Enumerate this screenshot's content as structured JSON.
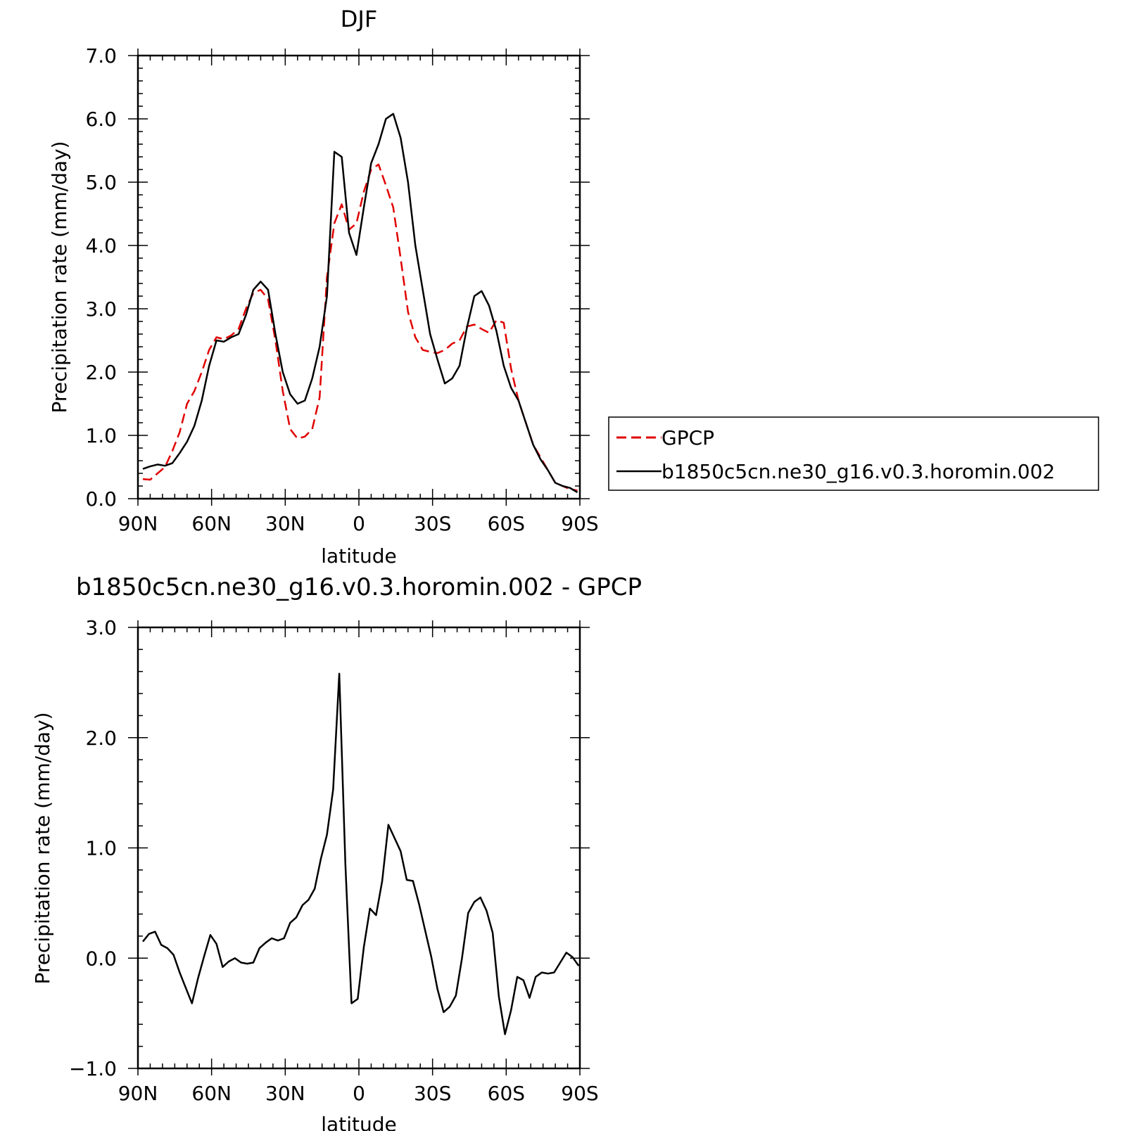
{
  "chart_data": [
    {
      "type": "line",
      "title": "DJF",
      "xlabel": "latitude",
      "ylabel": "Precipitation rate (mm/day)",
      "xlim": [
        90,
        -90
      ],
      "ylim": [
        0,
        7
      ],
      "xticks": [
        90,
        60,
        30,
        0,
        -30,
        -60,
        -90
      ],
      "xtick_labels": [
        "90N",
        "60N",
        "30N",
        "0",
        "30S",
        "60S",
        "90S"
      ],
      "yticks": [
        0,
        1,
        2,
        3,
        4,
        5,
        6,
        7
      ],
      "ytick_labels": [
        "0.0",
        "1.0",
        "2.0",
        "3.0",
        "4.0",
        "5.0",
        "6.0",
        "7.0"
      ],
      "legend": {
        "position": "right",
        "entries": [
          "GPCP",
          "b1850c5cn.ne30_g16.v0.3.horomin.002"
        ]
      },
      "series": [
        {
          "name": "GPCP",
          "color": "#e00000",
          "dash": true,
          "x": [
            88,
            85,
            82,
            79,
            76,
            73,
            70,
            67,
            64,
            61,
            58,
            55,
            52,
            49,
            46,
            43,
            40,
            37,
            34,
            31,
            28,
            25,
            22,
            19,
            16,
            13,
            10,
            7,
            4,
            1,
            -2,
            -5,
            -8,
            -11,
            -14,
            -17,
            -20,
            -23,
            -26,
            -29,
            -32,
            -35,
            -38,
            -41,
            -44,
            -47,
            -50,
            -53,
            -56,
            -59,
            -62,
            -65,
            -68,
            -71,
            -74,
            -77,
            -80,
            -83,
            -86,
            -89
          ],
          "y": [
            0.31,
            0.3,
            0.4,
            0.5,
            0.75,
            1.05,
            1.5,
            1.7,
            2.0,
            2.35,
            2.55,
            2.52,
            2.58,
            2.68,
            3.0,
            3.25,
            3.3,
            3.15,
            2.5,
            1.7,
            1.1,
            0.95,
            0.98,
            1.1,
            1.6,
            3.5,
            4.35,
            4.65,
            4.25,
            4.35,
            4.85,
            5.2,
            5.28,
            4.95,
            4.6,
            3.8,
            2.95,
            2.55,
            2.35,
            2.32,
            2.3,
            2.35,
            2.45,
            2.5,
            2.72,
            2.75,
            2.68,
            2.62,
            2.82,
            2.78,
            2.05,
            1.55,
            1.2,
            0.85,
            0.65,
            0.45,
            0.25,
            0.2,
            0.15,
            0.13
          ]
        },
        {
          "name": "b1850c5cn.ne30_g16.v0.3.horomin.002",
          "color": "#000000",
          "dash": false,
          "x": [
            88,
            85,
            82,
            79,
            76,
            73,
            70,
            67,
            64,
            61,
            58,
            55,
            52,
            49,
            46,
            43,
            40,
            37,
            34,
            31,
            28,
            25,
            22,
            19,
            16,
            13,
            10,
            7,
            4,
            1,
            -2,
            -5,
            -8,
            -11,
            -14,
            -17,
            -20,
            -23,
            -26,
            -29,
            -32,
            -35,
            -38,
            -41,
            -44,
            -47,
            -50,
            -53,
            -56,
            -59,
            -62,
            -65,
            -68,
            -71,
            -74,
            -77,
            -80,
            -83,
            -86,
            -89
          ],
          "y": [
            0.47,
            0.51,
            0.54,
            0.52,
            0.56,
            0.72,
            0.9,
            1.15,
            1.55,
            2.1,
            2.5,
            2.48,
            2.55,
            2.6,
            2.9,
            3.3,
            3.43,
            3.3,
            2.6,
            2.0,
            1.65,
            1.5,
            1.55,
            1.9,
            2.4,
            3.2,
            5.48,
            5.4,
            4.2,
            3.85,
            4.6,
            5.3,
            5.6,
            6.0,
            6.08,
            5.7,
            5.0,
            4.0,
            3.3,
            2.6,
            2.2,
            1.82,
            1.9,
            2.1,
            2.7,
            3.2,
            3.28,
            3.05,
            2.65,
            2.1,
            1.75,
            1.55,
            1.2,
            0.85,
            0.62,
            0.45,
            0.25,
            0.2,
            0.17,
            0.1
          ]
        }
      ]
    },
    {
      "type": "line",
      "title": "b1850c5cn.ne30_g16.v0.3.horomin.002 - GPCP",
      "xlabel": "latitude",
      "ylabel": "Precipitation rate (mm/day)",
      "xlim": [
        90,
        -90
      ],
      "ylim": [
        -1,
        3
      ],
      "xticks": [
        90,
        60,
        30,
        0,
        -30,
        -60,
        -90
      ],
      "xtick_labels": [
        "90N",
        "60N",
        "30N",
        "0",
        "30S",
        "60S",
        "90S"
      ],
      "yticks": [
        -1,
        0,
        1,
        2,
        3
      ],
      "ytick_labels": [
        "−1.0",
        "0.0",
        "1.0",
        "2.0",
        "3.0"
      ],
      "series": [
        {
          "color": "#000000",
          "dash": false,
          "x": [
            88,
            85.5,
            83,
            80.5,
            78,
            75.5,
            73,
            70.5,
            68,
            65.5,
            63,
            60.5,
            58,
            55.5,
            53,
            50.5,
            48,
            45.5,
            43,
            40.5,
            38,
            35.5,
            33,
            30.5,
            28,
            25.5,
            23,
            20.5,
            18,
            15.5,
            13,
            10.5,
            8,
            5.5,
            3,
            0.5,
            -2,
            -4.5,
            -7,
            -9.5,
            -12,
            -14.5,
            -17,
            -19.5,
            -22,
            -24.5,
            -27,
            -29.5,
            -32,
            -34.5,
            -37,
            -39.5,
            -42,
            -44.5,
            -47,
            -49.5,
            -52,
            -54.5,
            -57,
            -59.5,
            -62,
            -64.5,
            -67,
            -69.5,
            -72,
            -74.5,
            -77,
            -79.5,
            -82,
            -84.5,
            -87,
            -89.5
          ],
          "y": [
            0.15,
            0.22,
            0.24,
            0.12,
            0.09,
            0.03,
            -0.13,
            -0.27,
            -0.41,
            -0.18,
            0.02,
            0.21,
            0.13,
            -0.08,
            -0.03,
            0.0,
            -0.04,
            -0.05,
            -0.04,
            0.09,
            0.14,
            0.18,
            0.16,
            0.18,
            0.32,
            0.37,
            0.48,
            0.53,
            0.63,
            0.9,
            1.12,
            1.53,
            2.58,
            0.85,
            -0.41,
            -0.37,
            0.1,
            0.45,
            0.39,
            0.7,
            1.21,
            1.09,
            0.97,
            0.71,
            0.7,
            0.49,
            0.25,
            0.01,
            -0.28,
            -0.49,
            -0.44,
            -0.34,
            0.0,
            0.41,
            0.51,
            0.55,
            0.43,
            0.23,
            -0.35,
            -0.69,
            -0.47,
            -0.17,
            -0.2,
            -0.36,
            -0.17,
            -0.13,
            -0.14,
            -0.13,
            -0.04,
            0.05,
            0.01,
            -0.07
          ]
        }
      ]
    }
  ]
}
